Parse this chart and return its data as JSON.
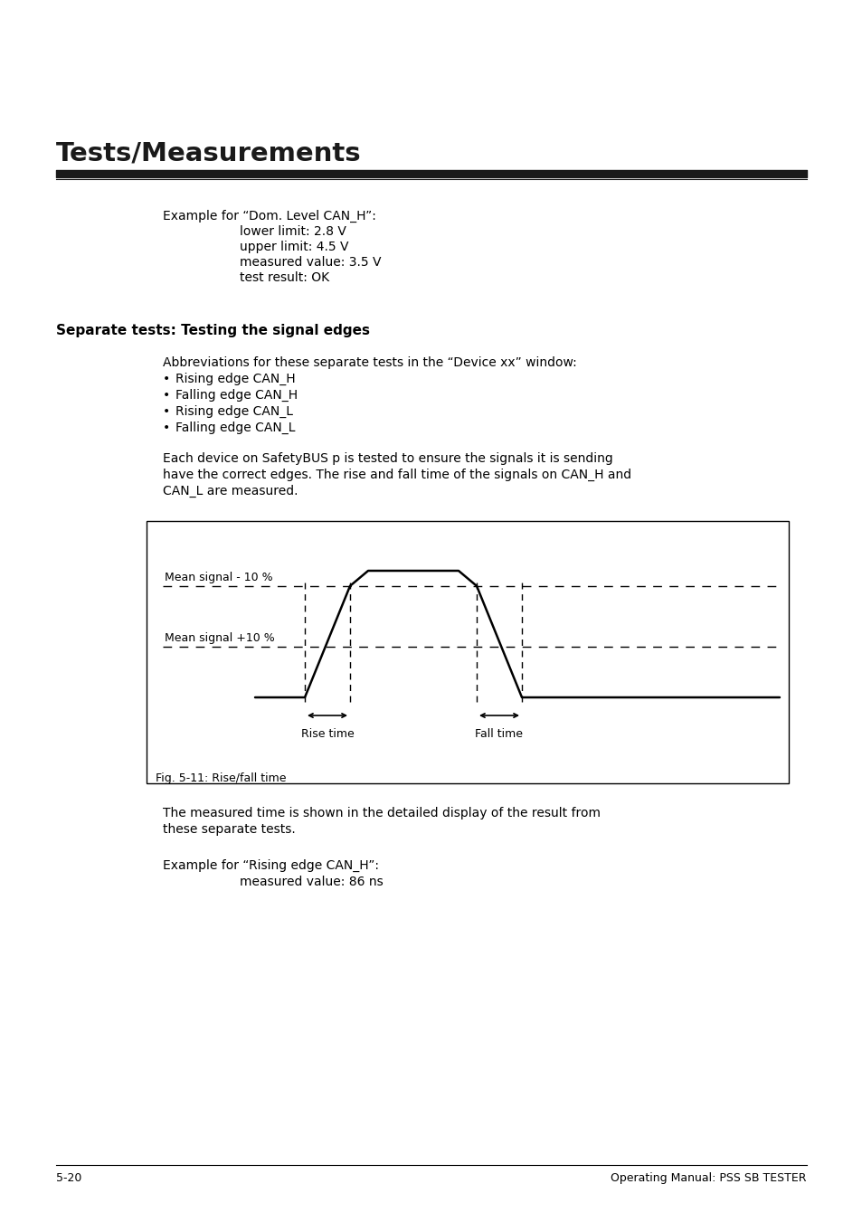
{
  "title": "Tests/Measurements",
  "page_bg": "#ffffff",
  "text_color": "#000000",
  "section_heading": "Separate tests: Testing the signal edges",
  "abbrev_intro": "Abbreviations for these separate tests in the “Device xx” window:",
  "bullet_items": [
    "Rising edge CAN_H",
    "Falling edge CAN_H",
    "Rising edge CAN_L",
    "Falling edge CAN_L"
  ],
  "body_lines": [
    "Each device on SafetyBUS p is tested to ensure the signals it is sending",
    "have the correct edges. The rise and fall time of the signals on CAN_H and",
    "CAN_L are measured."
  ],
  "fig_caption": "Fig. 5-11: Rise/fall time",
  "label_mean_minus": "Mean signal - 10 %",
  "label_mean_plus": "Mean signal +10 %",
  "label_rise": "Rise time",
  "label_fall": "Fall time",
  "after_fig_lines": [
    "The measured time is shown in the detailed display of the result from",
    "these separate tests."
  ],
  "footer_left": "5-20",
  "footer_right": "Operating Manual: PSS SB TESTER"
}
